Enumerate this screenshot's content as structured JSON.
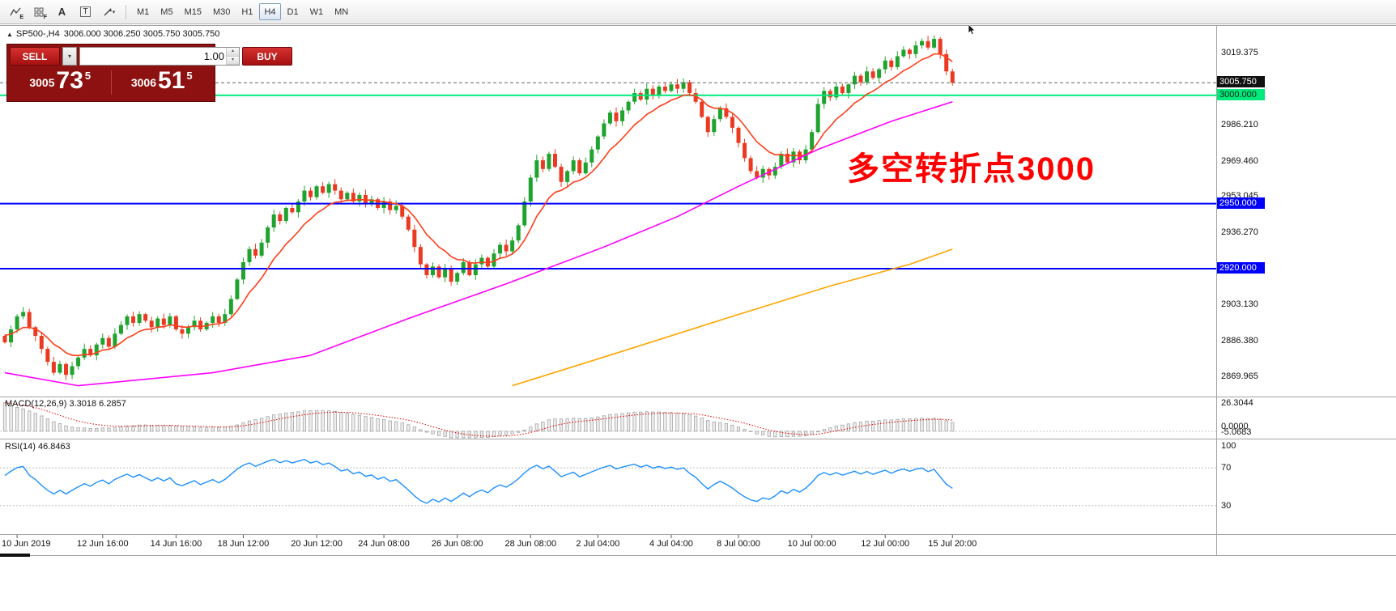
{
  "toolbar": {
    "tools": [
      {
        "name": "line-studies-tool",
        "shape": "zigzag",
        "glyph": "",
        "sub": "E"
      },
      {
        "name": "grid-tool",
        "shape": "grid",
        "glyph": "",
        "sub": "F"
      },
      {
        "name": "text-label-tool",
        "shape": "letter",
        "glyph": "A",
        "sub": ""
      },
      {
        "name": "text-box-tool",
        "shape": "boxed",
        "glyph": "T",
        "sub": ""
      },
      {
        "name": "arrow-draw-tool",
        "shape": "arrow",
        "glyph": "↘",
        "sub": ""
      }
    ],
    "timeframes": [
      "M1",
      "M5",
      "M15",
      "M30",
      "H1",
      "H4",
      "D1",
      "W1",
      "MN"
    ],
    "active_timeframe": "H4"
  },
  "chart_header": {
    "collapse_icon": "▲",
    "symbol": "SP500-,H4",
    "values": "3006.000 3006.250 3005.750 3005.750"
  },
  "trade_panel": {
    "sell": "SELL",
    "buy": "BUY",
    "volume": "1.00",
    "bid": {
      "small": "3005",
      "big": "73",
      "sup": "5"
    },
    "ask": {
      "small": "3006",
      "big": "51",
      "sup": "5"
    },
    "icons": {
      "caret": "▾",
      "up": "▴",
      "down": "▾"
    }
  },
  "annotation": {
    "text": "多空转折点3000",
    "color": "#ff0000"
  },
  "indicator_titles": {
    "macd": "MACD(12,26,9) 3.3018 6.2857",
    "rsi": "RSI(14) 46.8463"
  },
  "price_axis": {
    "tags": [
      {
        "text": "3005.750",
        "price": 3005.75,
        "bg": "#111111",
        "fg": "#ffffff"
      },
      {
        "text": "3000.000",
        "price": 3000,
        "bg": "#00e97b",
        "fg": "#00220f"
      },
      {
        "text": "2950.000",
        "price": 2950,
        "bg": "#0000ff",
        "fg": "#ffffff"
      },
      {
        "text": "2920.000",
        "price": 2920,
        "bg": "#0000ff",
        "fg": "#ffffff"
      }
    ]
  },
  "macd_scale": [
    "26.3044",
    "0.0000",
    "-5.0683"
  ],
  "rsi_scale": [
    {
      "text": "100",
      "value": 100
    },
    {
      "text": "70",
      "value": 70
    },
    {
      "text": "30",
      "value": 30
    }
  ],
  "chart_data": {
    "type": "candlestick",
    "title": "SP500-,H4",
    "ylim": [
      2861,
      3032
    ],
    "y_ticks": [
      3019.375,
      2986.21,
      2969.46,
      2953.045,
      2936.27,
      2903.13,
      2886.38,
      2869.965
    ],
    "x_tick_labels": [
      {
        "bar": 2,
        "text": "10 Jun 2019"
      },
      {
        "bar": 16,
        "text": "12 Jun 16:00"
      },
      {
        "bar": 28,
        "text": "14 Jun 16:00"
      },
      {
        "bar": 39,
        "text": "18 Jun 12:00"
      },
      {
        "bar": 51,
        "text": "20 Jun 12:00"
      },
      {
        "bar": 62,
        "text": "24 Jun 08:00"
      },
      {
        "bar": 74,
        "text": "26 Jun 08:00"
      },
      {
        "bar": 86,
        "text": "28 Jun 08:00"
      },
      {
        "bar": 97,
        "text": "2 Jul 04:00"
      },
      {
        "bar": 109,
        "text": "4 Jul 04:00"
      },
      {
        "bar": 120,
        "text": "8 Jul 00:00"
      },
      {
        "bar": 132,
        "text": "10 Jul 00:00"
      },
      {
        "bar": 144,
        "text": "12 Jul 00:00"
      },
      {
        "bar": 155,
        "text": "15 Jul 20:00"
      }
    ],
    "closes": [
      2886,
      2892,
      2898,
      2900,
      2893,
      2889,
      2883,
      2877,
      2872,
      2876,
      2871,
      2875,
      2879,
      2883,
      2880,
      2885,
      2888,
      2884,
      2890,
      2894,
      2898,
      2895,
      2899,
      2896,
      2893,
      2897,
      2894,
      2898,
      2892,
      2890,
      2893,
      2896,
      2892,
      2895,
      2898,
      2895,
      2899,
      2906,
      2915,
      2923,
      2929,
      2926,
      2932,
      2939,
      2945,
      2942,
      2948,
      2946,
      2951,
      2956,
      2953,
      2958,
      2955,
      2959,
      2956,
      2952,
      2955,
      2951,
      2954,
      2950,
      2952,
      2948,
      2951,
      2947,
      2949,
      2944,
      2938,
      2930,
      2922,
      2917,
      2921,
      2916,
      2920,
      2914,
      2918,
      2923,
      2917,
      2922,
      2925,
      2921,
      2927,
      2931,
      2928,
      2933,
      2940,
      2951,
      2962,
      2970,
      2966,
      2973,
      2967,
      2960,
      2965,
      2970,
      2964,
      2969,
      2975,
      2981,
      2987,
      2992,
      2988,
      2993,
      2997,
      3001,
      2998,
      3003,
      3000,
      3004,
      3002,
      3005,
      3003,
      3006,
      3001,
      2997,
      2990,
      2983,
      2989,
      2994,
      2990,
      2985,
      2978,
      2971,
      2965,
      2962,
      2966,
      2963,
      2967,
      2973,
      2969,
      2974,
      2970,
      2975,
      2983,
      2996,
      3002,
      2999,
      3004,
      3001,
      3005,
      3009,
      3006,
      3011,
      3008,
      3012,
      3016,
      3013,
      3018,
      3021,
      3019,
      3023,
      3025,
      3022,
      3026,
      3019,
      3011,
      3005.75
    ],
    "candle_colors": {
      "up": "#1fa32e",
      "down": "#ea3b22"
    },
    "overlays": {
      "ma_fast": {
        "style": "ema",
        "period": 10,
        "color": "#ff3d1a"
      },
      "ma_mid": {
        "color": "#ff00ff",
        "points": [
          [
            0,
            2872
          ],
          [
            12,
            2866
          ],
          [
            34,
            2872
          ],
          [
            50,
            2880
          ],
          [
            66,
            2897
          ],
          [
            82,
            2913
          ],
          [
            98,
            2930
          ],
          [
            110,
            2944
          ],
          [
            120,
            2958
          ],
          [
            133,
            2975
          ],
          [
            145,
            2988
          ],
          [
            155,
            2997
          ]
        ]
      },
      "ma_slow": {
        "color": "#ffa500",
        "points": [
          [
            83,
            2866
          ],
          [
            100,
            2881
          ],
          [
            119,
            2898
          ],
          [
            135,
            2912
          ],
          [
            148,
            2922
          ],
          [
            155,
            2929
          ]
        ]
      },
      "hlines": [
        {
          "price": 3000,
          "color": "#00e97b",
          "width": 2
        },
        {
          "price": 2950,
          "color": "#0000ff",
          "width": 2
        },
        {
          "price": 2920,
          "color": "#0000ff",
          "width": 2
        }
      ],
      "price_line": {
        "price": 3005.75,
        "color": "#666666",
        "dash": "4,3"
      }
    },
    "indicators": {
      "macd": {
        "fast": 12,
        "slow": 26,
        "signal": 9,
        "display": "3.3018 6.2857",
        "scale_max": 26.3044,
        "scale_min": -5.0683,
        "hist_fill": "#ededed",
        "hist_stroke": "#9a9a9a",
        "signal_color": "#e00000"
      },
      "rsi": {
        "period": 14,
        "display": "46.8463",
        "levels": [
          70,
          30
        ],
        "color": "#1e90ff"
      }
    }
  }
}
